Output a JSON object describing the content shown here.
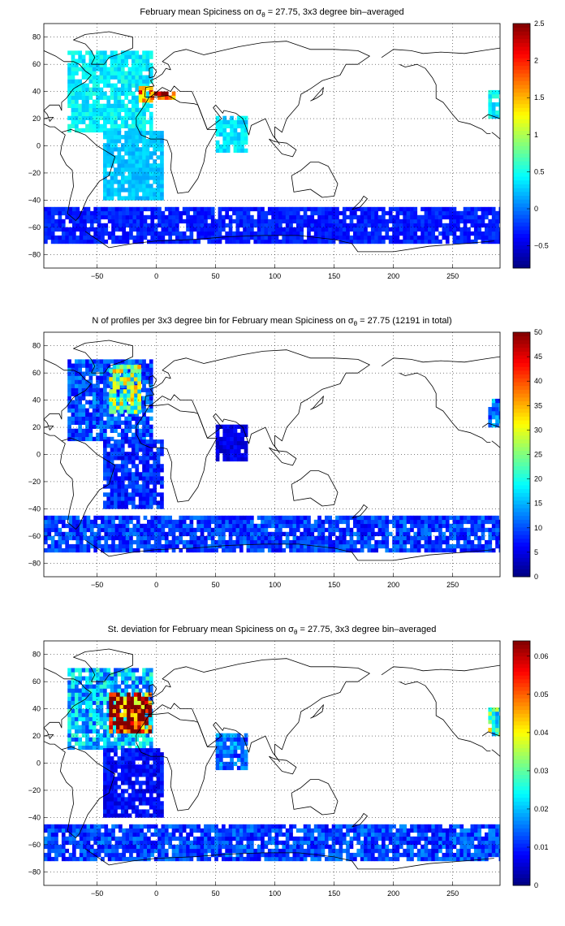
{
  "chart_data": [
    {
      "type": "heatmap",
      "title_pre": "February mean Spiciness on σ",
      "title_sub": "θ",
      "title_post": " = 27.75, 3x3 degree bin–averaged",
      "xlim": [
        -95,
        290
      ],
      "ylim": [
        -90,
        90
      ],
      "x_ticks": [
        -50,
        0,
        50,
        100,
        150,
        200,
        250
      ],
      "y_ticks": [
        80,
        60,
        40,
        20,
        0,
        -20,
        -40,
        -60,
        -80
      ],
      "grid": true,
      "colormap": "jet",
      "clim": [
        -0.8,
        2.5
      ],
      "colorbar_ticks": [
        -0.5,
        0,
        0.5,
        1,
        1.5,
        2,
        2.5
      ],
      "regions": [
        {
          "lon": [
            -75,
            -5
          ],
          "lat": [
            10,
            68
          ],
          "value": 0.4
        },
        {
          "lon": [
            -15,
            -5
          ],
          "lat": [
            32,
            42
          ],
          "value": 1.8
        },
        {
          "lon": [
            -5,
            15
          ],
          "lat": [
            34,
            40
          ],
          "value": 2.4
        },
        {
          "lon": [
            -45,
            5
          ],
          "lat": [
            -40,
            10
          ],
          "value": 0.25
        },
        {
          "lon": [
            50,
            75
          ],
          "lat": [
            -5,
            22
          ],
          "value": 0.35
        },
        {
          "lon": [
            -95,
            290
          ],
          "lat": [
            -72,
            -45
          ],
          "value": -0.3
        },
        {
          "lon": [
            280,
            290
          ],
          "lat": [
            20,
            40
          ],
          "value": 0.4
        }
      ]
    },
    {
      "type": "heatmap",
      "title_pre": "N of profiles per 3x3 degree bin for February mean Spiciness on σ",
      "title_sub": "θ",
      "title_post": " = 27.75 (12191 in total)",
      "xlim": [
        -95,
        290
      ],
      "ylim": [
        -90,
        90
      ],
      "x_ticks": [
        -50,
        0,
        50,
        100,
        150,
        200,
        250
      ],
      "y_ticks": [
        80,
        60,
        40,
        20,
        0,
        -20,
        -40,
        -60,
        -80
      ],
      "grid": true,
      "colormap": "jet",
      "clim": [
        0,
        50
      ],
      "colorbar_ticks": [
        0,
        5,
        10,
        15,
        20,
        25,
        30,
        35,
        40,
        45,
        50
      ],
      "regions": [
        {
          "lon": [
            -75,
            -5
          ],
          "lat": [
            10,
            68
          ],
          "value": 10
        },
        {
          "lon": [
            -40,
            -15
          ],
          "lat": [
            30,
            65
          ],
          "value": 25
        },
        {
          "lon": [
            -45,
            5
          ],
          "lat": [
            -40,
            10
          ],
          "value": 8
        },
        {
          "lon": [
            50,
            75
          ],
          "lat": [
            -5,
            22
          ],
          "value": 5
        },
        {
          "lon": [
            -95,
            290
          ],
          "lat": [
            -72,
            -45
          ],
          "value": 9
        },
        {
          "lon": [
            280,
            290
          ],
          "lat": [
            20,
            40
          ],
          "value": 12
        }
      ]
    },
    {
      "type": "heatmap",
      "title_pre": "St. deviation for February mean Spiciness on σ",
      "title_sub": "θ",
      "title_post": " = 27.75, 3x3 degree bin–averaged",
      "xlim": [
        -95,
        290
      ],
      "ylim": [
        -90,
        90
      ],
      "x_ticks": [
        -50,
        0,
        50,
        100,
        150,
        200,
        250
      ],
      "y_ticks": [
        80,
        60,
        40,
        20,
        0,
        -20,
        -40,
        -60,
        -80
      ],
      "grid": true,
      "colormap": "jet",
      "clim": [
        0,
        0.064
      ],
      "colorbar_ticks": [
        0,
        0.01,
        0.02,
        0.03,
        0.04,
        0.05,
        0.06
      ],
      "regions": [
        {
          "lon": [
            -75,
            -5
          ],
          "lat": [
            10,
            68
          ],
          "value": 0.02
        },
        {
          "lon": [
            -40,
            -5
          ],
          "lat": [
            22,
            52
          ],
          "value": 0.064
        },
        {
          "lon": [
            -45,
            5
          ],
          "lat": [
            -40,
            10
          ],
          "value": 0.008
        },
        {
          "lon": [
            50,
            75
          ],
          "lat": [
            -5,
            22
          ],
          "value": 0.015
        },
        {
          "lon": [
            -95,
            290
          ],
          "lat": [
            -72,
            -45
          ],
          "value": 0.012
        },
        {
          "lon": [
            280,
            290
          ],
          "lat": [
            20,
            40
          ],
          "value": 0.03
        }
      ]
    }
  ]
}
